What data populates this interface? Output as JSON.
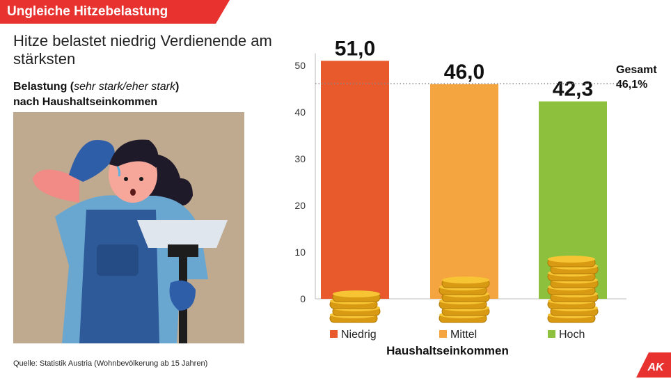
{
  "banner": {
    "text": "Ungleiche Hitzebelastung",
    "color": "#e8322f"
  },
  "title": "Hitze belastet niedrig Verdienende am stärksten",
  "subtitle": {
    "prefix": "Belastung (",
    "italic": "sehr stark/eher stark",
    "suffix": ")",
    "line2": "nach Haushaltseinkommen"
  },
  "illustration": {
    "icon": "woman-sweating-with-broom-illustration"
  },
  "source": "Quelle: Statistik Austria (Wohnbevölkerung ab 15 Jahren)",
  "logo": {
    "text": "AK",
    "color": "#e8322f"
  },
  "chart_data": {
    "type": "bar",
    "categories": [
      "Niedrig",
      "Mittel",
      "Hoch"
    ],
    "values": [
      51.0,
      46.0,
      42.3
    ],
    "value_labels": [
      "51,0",
      "46,0",
      "42,3"
    ],
    "colors": [
      "#e85a2c",
      "#f5a540",
      "#8dc03c"
    ],
    "ylim": [
      0,
      52
    ],
    "yticks": [
      "0",
      "10",
      "20",
      "30",
      "40",
      "50"
    ],
    "xlabel": "Haushaltseinkommen",
    "reference": {
      "value": 46.1,
      "label1": "Gesamt",
      "label2": "46,1%"
    },
    "legend": [
      "Niedrig",
      "Mittel",
      "Hoch"
    ],
    "coin_icon": "gold-coins-stack-icon",
    "coin_stack_counts": [
      4,
      6,
      9
    ]
  }
}
